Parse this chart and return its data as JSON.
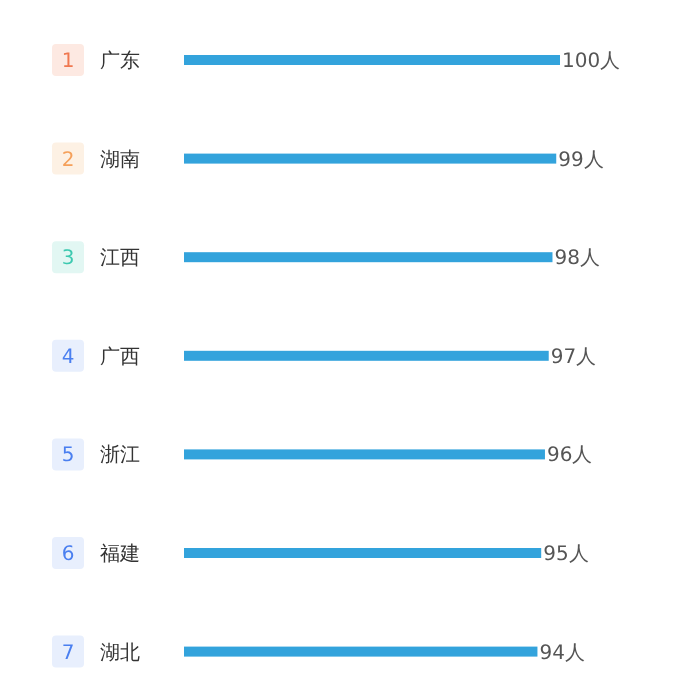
{
  "chart_data": {
    "type": "bar",
    "orientation": "horizontal",
    "categories": [
      "广东",
      "湖南",
      "江西",
      "广西",
      "浙江",
      "福建",
      "湖北"
    ],
    "values": [
      100,
      99,
      98,
      97,
      96,
      95,
      94
    ],
    "value_labels": [
      "100人",
      "99人",
      "98人",
      "97人",
      "96人",
      "95人",
      "94人"
    ],
    "annotations": [
      "1",
      "2",
      "3",
      "4",
      "5",
      "6",
      "7"
    ],
    "color": "#33a3dc"
  }
}
